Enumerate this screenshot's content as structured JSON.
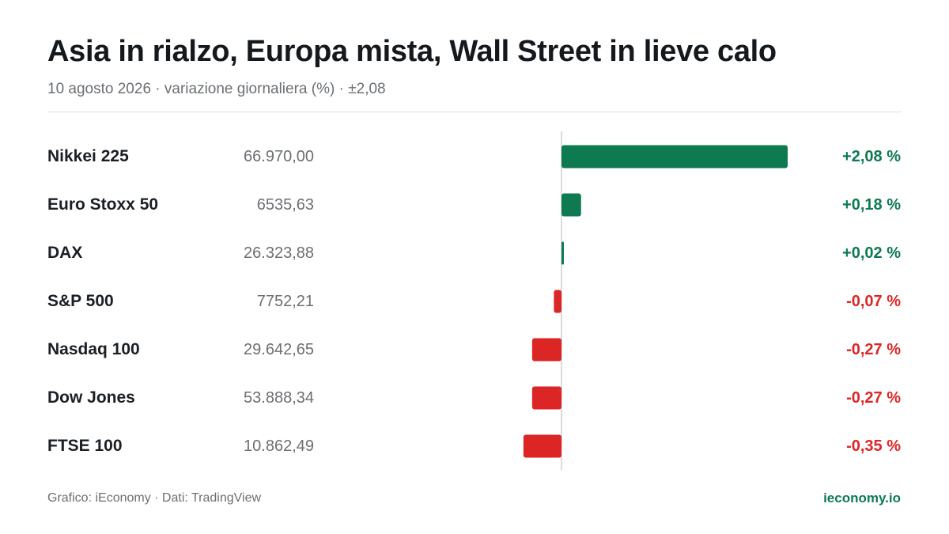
{
  "title": "Asia in rialzo, Europa mista, Wall Street in lieve calo",
  "subtitle": "10 agosto 2026 · variazione giornaliera (%) · ±2,08",
  "colors": {
    "positive": "#0d7a50",
    "negative": "#dc2626",
    "axis": "#d9dcdf"
  },
  "chart_data": {
    "type": "bar",
    "orientation": "horizontal",
    "categories": [
      "Nikkei 225",
      "Euro Stoxx 50",
      "DAX",
      "S&P 500",
      "Nasdaq 100",
      "Dow Jones",
      "FTSE 100"
    ],
    "prices": [
      "66.970,00",
      "6535,63",
      "26.323,88",
      "7752,21",
      "29.642,65",
      "53.888,34",
      "10.862,49"
    ],
    "values": [
      2.08,
      0.18,
      0.02,
      -0.07,
      -0.27,
      -0.27,
      -0.35
    ],
    "value_labels": [
      "+2,08 %",
      "+0,18 %",
      "+0,02 %",
      "-0,07 %",
      "-0,27 %",
      "-0,27 %",
      "-0,35 %"
    ],
    "xlim": [
      -2.08,
      2.08
    ],
    "grid": false,
    "legend": "none"
  },
  "footer": {
    "source": "Grafico: iEconomy · Dati: TradingView",
    "brand": "ieconomy.io"
  }
}
